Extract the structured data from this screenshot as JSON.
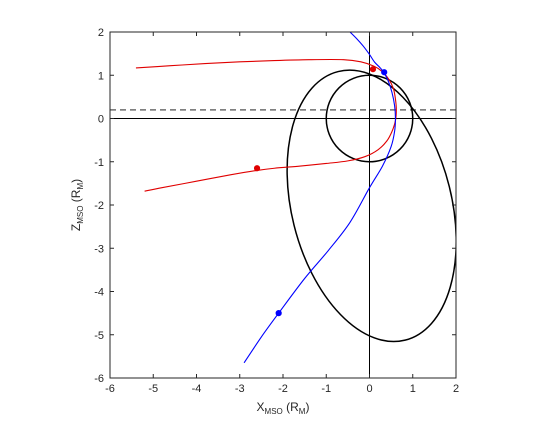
{
  "chart_data": {
    "type": "line",
    "title": "",
    "xlabel": {
      "main": "X",
      "sub": "MSO",
      "unit_open": " (R",
      "unit_sub": "M",
      "unit_close": ")"
    },
    "ylabel": {
      "main": "Z",
      "sub": "MSO",
      "unit_open": " (R",
      "unit_sub": "M",
      "unit_close": ")"
    },
    "xlim": [
      -6,
      2
    ],
    "ylim": [
      -6,
      2
    ],
    "xticks": [
      -6,
      -5,
      -4,
      -3,
      -2,
      -1,
      0,
      1,
      2
    ],
    "yticks": [
      -6,
      -5,
      -4,
      -3,
      -2,
      -1,
      0,
      1,
      2
    ],
    "grid": false,
    "box": true,
    "reference_lines": [
      {
        "kind": "hline",
        "y": 0,
        "color": "#000000",
        "style": "solid"
      },
      {
        "kind": "vline",
        "x": 0,
        "color": "#000000",
        "style": "solid"
      },
      {
        "kind": "hline",
        "y": 0.2,
        "color": "#6e6e6e",
        "style": "dashed"
      }
    ],
    "series": [
      {
        "color": "#e00000",
        "x": [
          -5.4,
          -4.6,
          -3.8,
          -3.0,
          -2.2,
          -1.4,
          -0.6,
          -0.2,
          0.1,
          0.3,
          0.45,
          0.55,
          0.6,
          0.62,
          0.6,
          0.52,
          0.4,
          0.2,
          -0.1,
          -0.5,
          -1.0,
          -1.6,
          -2.2,
          -2.6,
          -3.2,
          -4.0,
          -4.8,
          -5.2
        ],
        "y": [
          1.17,
          1.22,
          1.27,
          1.31,
          1.34,
          1.36,
          1.36,
          1.31,
          1.21,
          1.08,
          0.9,
          0.7,
          0.45,
          0.2,
          -0.05,
          -0.3,
          -0.52,
          -0.72,
          -0.88,
          -0.98,
          -1.04,
          -1.1,
          -1.15,
          -1.2,
          -1.3,
          -1.45,
          -1.6,
          -1.68
        ]
      },
      {
        "color": "#0000ff",
        "x": [
          -0.45,
          -0.3,
          -0.15,
          0.0,
          0.12,
          0.24,
          0.34,
          0.44,
          0.52,
          0.58,
          0.6,
          0.58,
          0.5,
          0.3,
          0.0,
          -0.45,
          -0.95,
          -1.5,
          -2.1,
          -2.5,
          -2.9
        ],
        "y": [
          2.0,
          1.85,
          1.68,
          1.48,
          1.3,
          1.18,
          1.05,
          0.85,
          0.6,
          0.3,
          0.0,
          -0.3,
          -0.65,
          -1.1,
          -1.6,
          -2.4,
          -3.05,
          -3.7,
          -4.5,
          -5.05,
          -5.65
        ]
      }
    ],
    "closed_curves": [
      {
        "color": "#000000",
        "shape": "circle",
        "cx": 0,
        "cy": 0,
        "r": 1
      },
      {
        "color": "#000000",
        "shape": "ellipse",
        "cx": 0.05,
        "cy": -2.02,
        "rx": 1.85,
        "ry": 3.2,
        "rotation_deg": 14
      }
    ],
    "markers": [
      {
        "color": "#e00000",
        "x": 0.08,
        "y": 1.14
      },
      {
        "color": "#e00000",
        "x": -2.6,
        "y": -1.15
      },
      {
        "color": "#0000ff",
        "x": 0.34,
        "y": 1.07
      },
      {
        "color": "#0000ff",
        "x": -2.1,
        "y": -4.5
      }
    ]
  }
}
